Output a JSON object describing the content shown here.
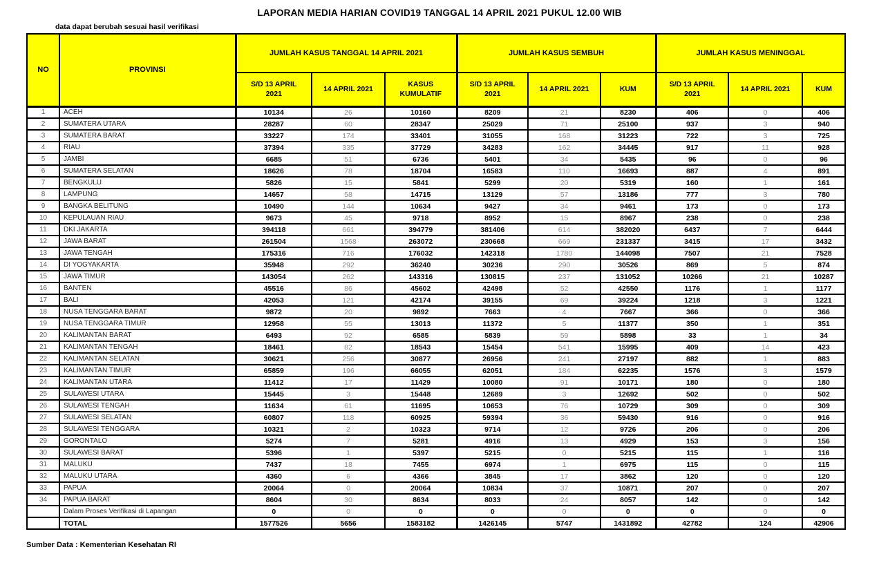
{
  "title": "LAPORAN MEDIA HARIAN COVID19 TANGGAL 14 APRIL 2021 PUKUL 12.00 WIB",
  "note": "data dapat berubah sesuai hasil verifikasi",
  "source": "Sumber Data : Kementerian Kesehatan RI",
  "colors": {
    "header_bg": "#ffff00",
    "border": "#000000",
    "text": "#000000",
    "muted_text": "#8c8c8c",
    "secondary_text": "#595959"
  },
  "table": {
    "no_label": "NO",
    "provinsi_label": "PROVINSI",
    "groups": [
      "JUMLAH KASUS TANGGAL 14 APRIL 2021",
      "JUMLAH KASUS SEMBUH",
      "JUMLAH KASUS MENINGGAL"
    ],
    "sub_headers": [
      "S/D 13 APRIL 2021",
      "14 APRIL 2021",
      "KASUS KUMULATIF",
      "S/D 13 APRIL 2021",
      "14 APRIL 2021",
      "KUM",
      "S/D 13 APRIL 2021",
      "14 APRIL 2021",
      "KUM"
    ],
    "rows": [
      {
        "no": "1",
        "provinsi": "ACEH",
        "values": [
          "10134",
          "26",
          "10160",
          "8209",
          "21",
          "8230",
          "406",
          "0",
          "406"
        ]
      },
      {
        "no": "2",
        "provinsi": "SUMATERA UTARA",
        "values": [
          "28287",
          "60",
          "28347",
          "25029",
          "71",
          "25100",
          "937",
          "3",
          "940"
        ]
      },
      {
        "no": "3",
        "provinsi": "SUMATERA BARAT",
        "values": [
          "33227",
          "174",
          "33401",
          "31055",
          "168",
          "31223",
          "722",
          "3",
          "725"
        ]
      },
      {
        "no": "4",
        "provinsi": "RIAU",
        "values": [
          "37394",
          "335",
          "37729",
          "34283",
          "162",
          "34445",
          "917",
          "11",
          "928"
        ]
      },
      {
        "no": "5",
        "provinsi": "JAMBI",
        "values": [
          "6685",
          "51",
          "6736",
          "5401",
          "34",
          "5435",
          "96",
          "0",
          "96"
        ]
      },
      {
        "no": "6",
        "provinsi": "SUMATERA SELATAN",
        "values": [
          "18626",
          "78",
          "18704",
          "16583",
          "110",
          "16693",
          "887",
          "4",
          "891"
        ]
      },
      {
        "no": "7",
        "provinsi": "BENGKULU",
        "values": [
          "5826",
          "15",
          "5841",
          "5299",
          "20",
          "5319",
          "160",
          "1",
          "161"
        ]
      },
      {
        "no": "8",
        "provinsi": "LAMPUNG",
        "values": [
          "14657",
          "58",
          "14715",
          "13129",
          "57",
          "13186",
          "777",
          "3",
          "780"
        ]
      },
      {
        "no": "9",
        "provinsi": "BANGKA BELITUNG",
        "values": [
          "10490",
          "144",
          "10634",
          "9427",
          "34",
          "9461",
          "173",
          "0",
          "173"
        ]
      },
      {
        "no": "10",
        "provinsi": "KEPULAUAN RIAU",
        "values": [
          "9673",
          "45",
          "9718",
          "8952",
          "15",
          "8967",
          "238",
          "0",
          "238"
        ]
      },
      {
        "no": "11",
        "provinsi": "DKI JAKARTA",
        "values": [
          "394118",
          "661",
          "394779",
          "381406",
          "614",
          "382020",
          "6437",
          "7",
          "6444"
        ]
      },
      {
        "no": "12",
        "provinsi": "JAWA BARAT",
        "values": [
          "261504",
          "1568",
          "263072",
          "230668",
          "669",
          "231337",
          "3415",
          "17",
          "3432"
        ]
      },
      {
        "no": "13",
        "provinsi": "JAWA TENGAH",
        "values": [
          "175316",
          "716",
          "176032",
          "142318",
          "1780",
          "144098",
          "7507",
          "21",
          "7528"
        ]
      },
      {
        "no": "14",
        "provinsi": "DI YOGYAKARTA",
        "values": [
          "35948",
          "292",
          "36240",
          "30236",
          "290",
          "30526",
          "869",
          "5",
          "874"
        ]
      },
      {
        "no": "15",
        "provinsi": "JAWA TIMUR",
        "values": [
          "143054",
          "262",
          "143316",
          "130815",
          "237",
          "131052",
          "10266",
          "21",
          "10287"
        ]
      },
      {
        "no": "16",
        "provinsi": "BANTEN",
        "values": [
          "45516",
          "86",
          "45602",
          "42498",
          "52",
          "42550",
          "1176",
          "1",
          "1177"
        ]
      },
      {
        "no": "17",
        "provinsi": "BALI",
        "values": [
          "42053",
          "121",
          "42174",
          "39155",
          "69",
          "39224",
          "1218",
          "3",
          "1221"
        ]
      },
      {
        "no": "18",
        "provinsi": "NUSA TENGGARA BARAT",
        "values": [
          "9872",
          "20",
          "9892",
          "7663",
          "4",
          "7667",
          "366",
          "0",
          "366"
        ]
      },
      {
        "no": "19",
        "provinsi": "NUSA TENGGARA TIMUR",
        "values": [
          "12958",
          "55",
          "13013",
          "11372",
          "5",
          "11377",
          "350",
          "1",
          "351"
        ]
      },
      {
        "no": "20",
        "provinsi": "KALIMANTAN BARAT",
        "values": [
          "6493",
          "92",
          "6585",
          "5839",
          "59",
          "5898",
          "33",
          "1",
          "34"
        ]
      },
      {
        "no": "21",
        "provinsi": "KALIMANTAN TENGAH",
        "values": [
          "18461",
          "82",
          "18543",
          "15454",
          "541",
          "15995",
          "409",
          "14",
          "423"
        ]
      },
      {
        "no": "22",
        "provinsi": "KALIMANTAN SELATAN",
        "values": [
          "30621",
          "256",
          "30877",
          "26956",
          "241",
          "27197",
          "882",
          "1",
          "883"
        ]
      },
      {
        "no": "23",
        "provinsi": "KALIMANTAN TIMUR",
        "values": [
          "65859",
          "196",
          "66055",
          "62051",
          "184",
          "62235",
          "1576",
          "3",
          "1579"
        ]
      },
      {
        "no": "24",
        "provinsi": "KALIMANTAN UTARA",
        "values": [
          "11412",
          "17",
          "11429",
          "10080",
          "91",
          "10171",
          "180",
          "0",
          "180"
        ]
      },
      {
        "no": "25",
        "provinsi": "SULAWESI UTARA",
        "values": [
          "15445",
          "3",
          "15448",
          "12689",
          "3",
          "12692",
          "502",
          "0",
          "502"
        ]
      },
      {
        "no": "26",
        "provinsi": "SULAWESI TENGAH",
        "values": [
          "11634",
          "61",
          "11695",
          "10653",
          "76",
          "10729",
          "309",
          "0",
          "309"
        ]
      },
      {
        "no": "27",
        "provinsi": "SULAWESI SELATAN",
        "values": [
          "60807",
          "118",
          "60925",
          "59394",
          "36",
          "59430",
          "916",
          "0",
          "916"
        ]
      },
      {
        "no": "28",
        "provinsi": "SULAWESI TENGGARA",
        "values": [
          "10321",
          "2",
          "10323",
          "9714",
          "12",
          "9726",
          "206",
          "0",
          "206"
        ]
      },
      {
        "no": "29",
        "provinsi": "GORONTALO",
        "values": [
          "5274",
          "7",
          "5281",
          "4916",
          "13",
          "4929",
          "153",
          "3",
          "156"
        ]
      },
      {
        "no": "30",
        "provinsi": "SULAWESI BARAT",
        "values": [
          "5396",
          "1",
          "5397",
          "5215",
          "0",
          "5215",
          "115",
          "1",
          "116"
        ]
      },
      {
        "no": "31",
        "provinsi": "MALUKU",
        "values": [
          "7437",
          "18",
          "7455",
          "6974",
          "1",
          "6975",
          "115",
          "0",
          "115"
        ]
      },
      {
        "no": "32",
        "provinsi": "MALUKU UTARA",
        "values": [
          "4360",
          "6",
          "4366",
          "3845",
          "17",
          "3862",
          "120",
          "0",
          "120"
        ]
      },
      {
        "no": "33",
        "provinsi": "PAPUA",
        "values": [
          "20064",
          "0",
          "20064",
          "10834",
          "37",
          "10871",
          "207",
          "0",
          "207"
        ]
      },
      {
        "no": "34",
        "provinsi": "PAPUA BARAT",
        "values": [
          "8604",
          "30",
          "8634",
          "8033",
          "24",
          "8057",
          "142",
          "0",
          "142"
        ]
      }
    ],
    "verification_row": {
      "label": "Dalam Proses Verifikasi di Lapangan",
      "values": [
        "0",
        "0",
        "0",
        "0",
        "0",
        "0",
        "0",
        "0",
        "0"
      ]
    },
    "total_row": {
      "label": "TOTAL",
      "values": [
        "1577526",
        "5656",
        "1583182",
        "1426145",
        "5747",
        "1431892",
        "42782",
        "124",
        "42906"
      ]
    }
  }
}
